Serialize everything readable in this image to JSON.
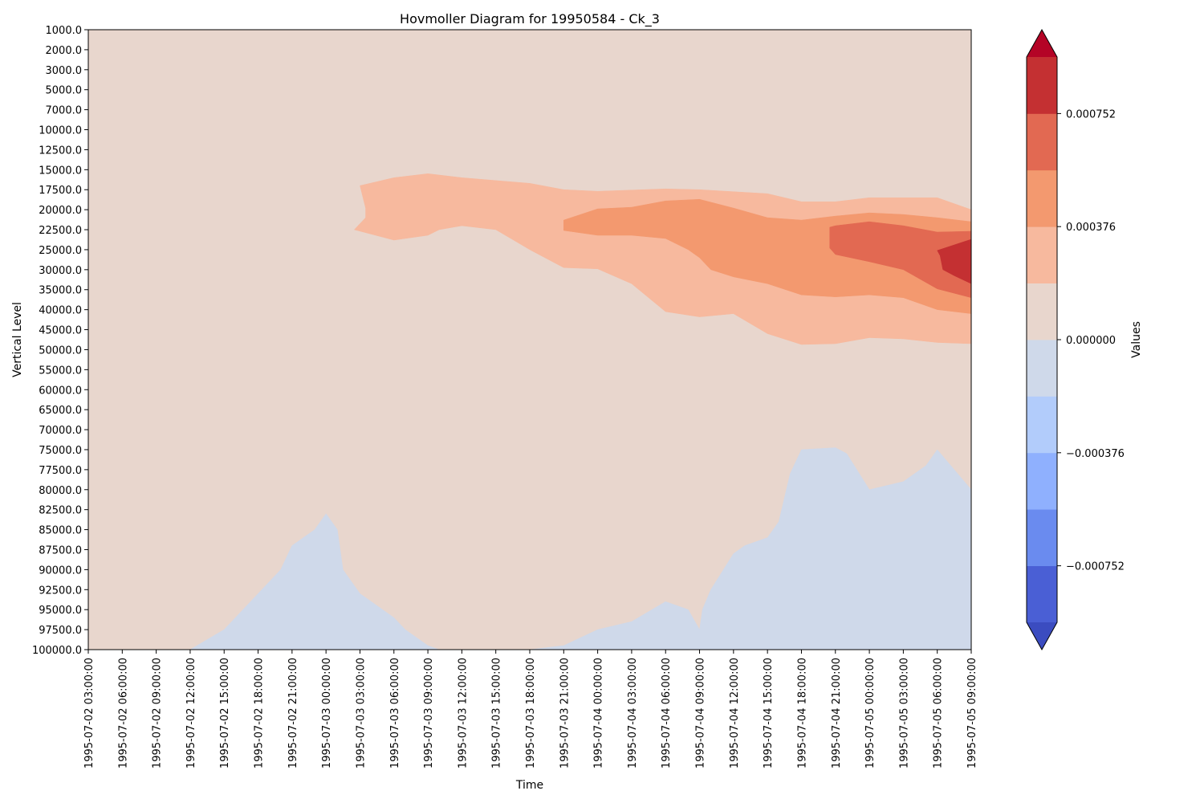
{
  "chart_data": {
    "type": "heatmap",
    "subtype": "filled-contour",
    "title": "Hovmoller Diagram for 19950584 - Ck_3",
    "xlabel": "Time",
    "ylabel": "Vertical Level",
    "colorbar_label": "Values",
    "x_ticks": [
      "1995-07-02 03:00:00",
      "1995-07-02 06:00:00",
      "1995-07-02 09:00:00",
      "1995-07-02 12:00:00",
      "1995-07-02 15:00:00",
      "1995-07-02 18:00:00",
      "1995-07-02 21:00:00",
      "1995-07-03 00:00:00",
      "1995-07-03 03:00:00",
      "1995-07-03 06:00:00",
      "1995-07-03 09:00:00",
      "1995-07-03 12:00:00",
      "1995-07-03 15:00:00",
      "1995-07-03 18:00:00",
      "1995-07-03 21:00:00",
      "1995-07-04 00:00:00",
      "1995-07-04 03:00:00",
      "1995-07-04 06:00:00",
      "1995-07-04 09:00:00",
      "1995-07-04 12:00:00",
      "1995-07-04 15:00:00",
      "1995-07-04 18:00:00",
      "1995-07-04 21:00:00",
      "1995-07-05 00:00:00",
      "1995-07-05 03:00:00",
      "1995-07-05 06:00:00",
      "1995-07-05 09:00:00"
    ],
    "y_ticks": [
      "1000.0",
      "2000.0",
      "3000.0",
      "5000.0",
      "7000.0",
      "10000.0",
      "12500.0",
      "15000.0",
      "17500.0",
      "20000.0",
      "22500.0",
      "25000.0",
      "30000.0",
      "35000.0",
      "40000.0",
      "45000.0",
      "50000.0",
      "55000.0",
      "60000.0",
      "65000.0",
      "70000.0",
      "75000.0",
      "77500.0",
      "80000.0",
      "82500.0",
      "85000.0",
      "87500.0",
      "90000.0",
      "92500.0",
      "95000.0",
      "97500.0",
      "100000.0"
    ],
    "y_inverted": true,
    "colorbar": {
      "extend": "both",
      "levels": [
        -0.00094,
        -0.000752,
        -0.000564,
        -0.000376,
        -0.000188,
        0.0,
        0.000188,
        0.000376,
        0.000564,
        0.000752,
        0.00094
      ],
      "tick_labels": [
        "0.000752",
        "0.000376",
        "0.000000",
        "−0.000376",
        "−0.000752"
      ],
      "tick_values": [
        0.000752,
        0.000376,
        0.0,
        -0.000376,
        -0.000752
      ],
      "colors": {
        "under": "#3b4cc0",
        "bands": [
          "#4a5fd5",
          "#6a8bef",
          "#8fb0fe",
          "#b2ccfb",
          "#cfd9ea",
          "#e8d6cd",
          "#f7b99e",
          "#f3996f",
          "#e26952",
          "#c43032"
        ],
        "over": "#b40426"
      }
    },
    "regions": [
      {
        "name": "negative-level-1",
        "color": "#cfd9ea",
        "range": [
          -0.000188,
          0.0
        ],
        "points": [
          [
            "1995-07-02 12:00:00",
            "100000.0"
          ],
          [
            "1995-07-02 15:00:00",
            "97500.0"
          ],
          [
            "1995-07-02 18:00:00",
            "93000.0"
          ],
          [
            "1995-07-02 20:00:00",
            "90000.0"
          ],
          [
            "1995-07-02 21:00:00",
            "87000.0"
          ],
          [
            "1995-07-02 23:00:00",
            "85000.0"
          ],
          [
            "1995-07-03 00:00:00",
            "83000.0"
          ],
          [
            "1995-07-03 01:00:00",
            "85000.0"
          ],
          [
            "1995-07-03 01:30:00",
            "90000.0"
          ],
          [
            "1995-07-03 03:00:00",
            "93000.0"
          ],
          [
            "1995-07-03 06:00:00",
            "96000.0"
          ],
          [
            "1995-07-03 07:00:00",
            "97500.0"
          ],
          [
            "1995-07-03 09:00:00",
            "99500.0"
          ],
          [
            "1995-07-03 10:00:00",
            "100000.0"
          ],
          [
            "1995-07-03 18:00:00",
            "100000.0"
          ],
          [
            "1995-07-03 21:00:00",
            "99500.0"
          ],
          [
            "1995-07-04 00:00:00",
            "97500.0"
          ],
          [
            "1995-07-04 03:00:00",
            "96500.0"
          ],
          [
            "1995-07-04 06:00:00",
            "94000.0"
          ],
          [
            "1995-07-04 08:00:00",
            "95000.0"
          ],
          [
            "1995-07-04 09:00:00",
            "97500.0"
          ],
          [
            "1995-07-04 09:15:00",
            "95000.0"
          ],
          [
            "1995-07-04 10:00:00",
            "92500.0"
          ],
          [
            "1995-07-04 12:00:00",
            "88000.0"
          ],
          [
            "1995-07-04 13:00:00",
            "87000.0"
          ],
          [
            "1995-07-04 15:00:00",
            "86000.0"
          ],
          [
            "1995-07-04 16:00:00",
            "84000.0"
          ],
          [
            "1995-07-04 17:00:00",
            "78000.0"
          ],
          [
            "1995-07-04 18:00:00",
            "75000.0"
          ],
          [
            "1995-07-04 21:00:00",
            "74500.0"
          ],
          [
            "1995-07-04 22:00:00",
            "75500.0"
          ],
          [
            "1995-07-05 00:00:00",
            "80000.0"
          ],
          [
            "1995-07-05 03:00:00",
            "79000.0"
          ],
          [
            "1995-07-05 05:00:00",
            "77000.0"
          ],
          [
            "1995-07-05 06:00:00",
            "75000.0"
          ],
          [
            "1995-07-05 09:00:00",
            "80000.0"
          ],
          [
            "1995-07-05 09:00:00",
            "100000.0"
          ]
        ]
      },
      {
        "name": "positive-level-1",
        "color": "#f7b99e",
        "range": [
          0.0,
          0.000188
        ],
        "points": [
          [
            "1995-07-03 03:00:00",
            "17000.0"
          ],
          [
            "1995-07-03 06:00:00",
            "16000.0"
          ],
          [
            "1995-07-03 09:00:00",
            "15500.0"
          ],
          [
            "1995-07-03 12:00:00",
            "16000.0"
          ],
          [
            "1995-07-03 18:00:00",
            "16700.0"
          ],
          [
            "1995-07-03 21:00:00",
            "17500.0"
          ],
          [
            "1995-07-04 00:00:00",
            "17700.0"
          ],
          [
            "1995-07-04 06:00:00",
            "17400.0"
          ],
          [
            "1995-07-04 09:00:00",
            "17500.0"
          ],
          [
            "1995-07-04 15:00:00",
            "18000.0"
          ],
          [
            "1995-07-04 18:00:00",
            "19000.0"
          ],
          [
            "1995-07-04 21:00:00",
            "19000.0"
          ],
          [
            "1995-07-05 00:00:00",
            "18500.0"
          ],
          [
            "1995-07-05 06:00:00",
            "18500.0"
          ],
          [
            "1995-07-05 09:00:00",
            "20000.0"
          ],
          [
            "1995-07-05 09:00:00",
            "48500.0"
          ],
          [
            "1995-07-05 06:00:00",
            "48200.0"
          ],
          [
            "1995-07-05 03:00:00",
            "47300.0"
          ],
          [
            "1995-07-05 00:00:00",
            "47000.0"
          ],
          [
            "1995-07-04 21:00:00",
            "48500.0"
          ],
          [
            "1995-07-04 18:00:00",
            "48700.0"
          ],
          [
            "1995-07-04 15:00:00",
            "46000.0"
          ],
          [
            "1995-07-04 12:00:00",
            "41000.0"
          ],
          [
            "1995-07-04 09:00:00",
            "41800.0"
          ],
          [
            "1995-07-04 06:00:00",
            "40500.0"
          ],
          [
            "1995-07-04 03:00:00",
            "33500.0"
          ],
          [
            "1995-07-04 00:00:00",
            "29800.0"
          ],
          [
            "1995-07-03 21:00:00",
            "29500.0"
          ],
          [
            "1995-07-03 18:00:00",
            "25000.0"
          ],
          [
            "1995-07-03 15:00:00",
            "22500.0"
          ],
          [
            "1995-07-03 12:00:00",
            "22000.0"
          ],
          [
            "1995-07-03 10:00:00",
            "22500.0"
          ],
          [
            "1995-07-03 09:00:00",
            "23200.0"
          ],
          [
            "1995-07-03 06:00:00",
            "23800.0"
          ],
          [
            "1995-07-03 02:30:00",
            "22500.0"
          ],
          [
            "1995-07-03 03:30:00",
            "21000.0"
          ],
          [
            "1995-07-03 03:30:00",
            "19800.0"
          ]
        ]
      },
      {
        "name": "positive-level-2",
        "color": "#f3996f",
        "range": [
          0.000188,
          0.000376
        ],
        "points": [
          [
            "1995-07-03 21:00:00",
            "22600.0"
          ],
          [
            "1995-07-03 21:00:00",
            "21300.0"
          ],
          [
            "1995-07-04 00:00:00",
            "19900.0"
          ],
          [
            "1995-07-04 03:00:00",
            "19700.0"
          ],
          [
            "1995-07-04 06:00:00",
            "18900.0"
          ],
          [
            "1995-07-04 09:00:00",
            "18700.0"
          ],
          [
            "1995-07-04 12:00:00",
            "19800.0"
          ],
          [
            "1995-07-04 15:00:00",
            "21000.0"
          ],
          [
            "1995-07-04 18:00:00",
            "21300.0"
          ],
          [
            "1995-07-04 21:00:00",
            "20800.0"
          ],
          [
            "1995-07-05 00:00:00",
            "20400.0"
          ],
          [
            "1995-07-05 03:00:00",
            "20600.0"
          ],
          [
            "1995-07-05 06:00:00",
            "21000.0"
          ],
          [
            "1995-07-05 09:00:00",
            "21500.0"
          ],
          [
            "1995-07-05 09:00:00",
            "41000.0"
          ],
          [
            "1995-07-05 06:00:00",
            "40000.0"
          ],
          [
            "1995-07-05 03:00:00",
            "37000.0"
          ],
          [
            "1995-07-05 00:00:00",
            "36300.0"
          ],
          [
            "1995-07-04 21:00:00",
            "36800.0"
          ],
          [
            "1995-07-04 18:00:00",
            "36300.0"
          ],
          [
            "1995-07-04 15:00:00",
            "33500.0"
          ],
          [
            "1995-07-04 12:00:00",
            "31800.0"
          ],
          [
            "1995-07-04 10:00:00",
            "30000.0"
          ],
          [
            "1995-07-04 09:00:00",
            "27000.0"
          ],
          [
            "1995-07-04 08:00:00",
            "25000.0"
          ],
          [
            "1995-07-04 06:00:00",
            "23600.0"
          ],
          [
            "1995-07-04 03:00:00",
            "23200.0"
          ],
          [
            "1995-07-04 00:00:00",
            "23200.0"
          ]
        ]
      },
      {
        "name": "positive-level-3",
        "color": "#e26952",
        "range": [
          0.000376,
          0.000564
        ],
        "points": [
          [
            "1995-07-04 20:30:00",
            "22200.0"
          ],
          [
            "1995-07-04 21:00:00",
            "22000.0"
          ],
          [
            "1995-07-05 00:00:00",
            "21500.0"
          ],
          [
            "1995-07-05 03:00:00",
            "22000.0"
          ],
          [
            "1995-07-05 06:00:00",
            "22800.0"
          ],
          [
            "1995-07-05 09:00:00",
            "22700.0"
          ],
          [
            "1995-07-05 09:00:00",
            "37000.0"
          ],
          [
            "1995-07-05 06:00:00",
            "34800.0"
          ],
          [
            "1995-07-05 03:00:00",
            "30000.0"
          ],
          [
            "1995-07-05 00:00:00",
            "28000.0"
          ],
          [
            "1995-07-04 21:00:00",
            "26200.0"
          ],
          [
            "1995-07-04 20:30:00",
            "24800.0"
          ]
        ]
      },
      {
        "name": "positive-level-4",
        "color": "#c43032",
        "range": [
          0.000564,
          0.000752
        ],
        "points": [
          [
            "1995-07-05 06:00:00",
            "25200.0"
          ],
          [
            "1995-07-05 09:00:00",
            "23700.0"
          ],
          [
            "1995-07-05 09:00:00",
            "33500.0"
          ],
          [
            "1995-07-05 07:30:00",
            "31500.0"
          ],
          [
            "1995-07-05 06:30:00",
            "30000.0"
          ],
          [
            "1995-07-05 06:15:00",
            "26500.0"
          ]
        ]
      }
    ]
  }
}
